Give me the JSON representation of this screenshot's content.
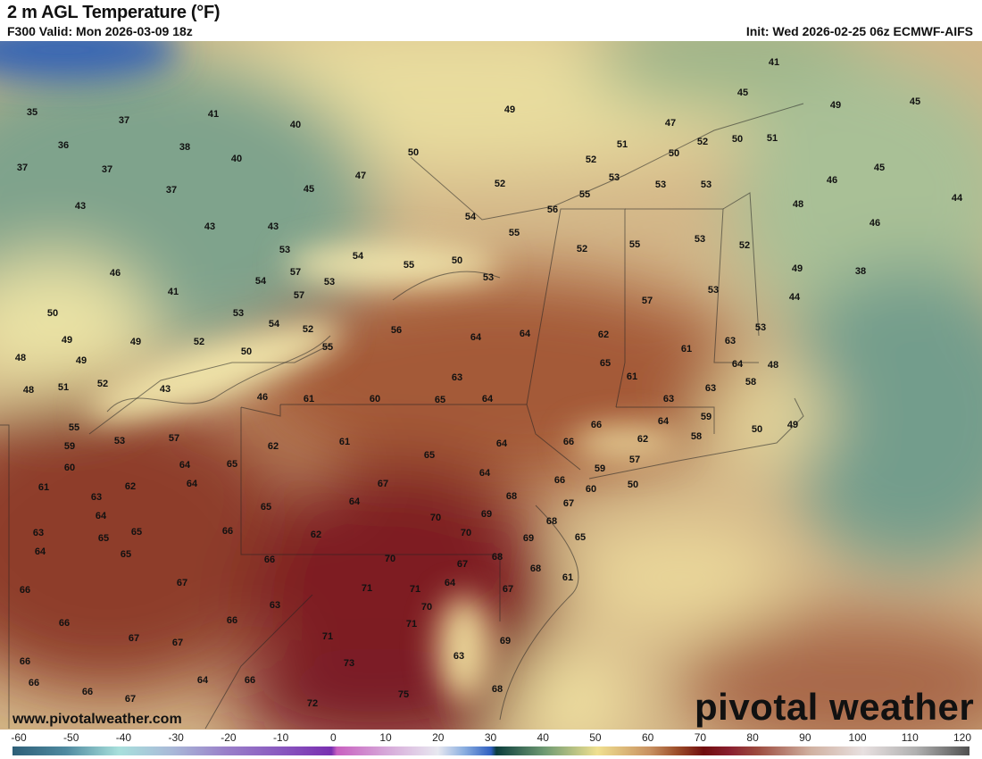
{
  "header": {
    "title": "2 m AGL Temperature (°F)",
    "valid": "F300 Valid: Mon 2026-03-09 18z",
    "init": "Init: Wed 2026-02-25 06z ECMWF-AIFS"
  },
  "branding": {
    "site": "www.pivotalweather.com",
    "logo": "pivotal weather"
  },
  "colorbar": {
    "unit": "°F",
    "ticks": [
      "-60",
      "-50",
      "-40",
      "-30",
      "-20",
      "-10",
      "0",
      "10",
      "20",
      "30",
      "40",
      "50",
      "60",
      "70",
      "80",
      "90",
      "100",
      "110",
      "120"
    ],
    "range": [
      -60,
      120
    ]
  },
  "station_values": [
    35,
    37,
    41,
    40,
    49,
    41,
    45,
    49,
    45,
    36,
    38,
    40,
    50,
    47,
    51,
    52,
    50,
    51,
    50,
    52,
    37,
    37,
    47,
    45,
    37,
    52,
    53,
    53,
    53,
    55,
    46,
    45,
    48,
    44,
    43,
    43,
    43,
    54,
    56,
    55,
    52,
    55,
    53,
    52,
    46,
    53,
    54,
    55,
    50,
    57,
    54,
    53,
    53,
    49,
    38,
    46,
    41,
    57,
    57,
    53,
    44,
    50,
    53,
    54,
    52,
    56,
    64,
    64,
    62,
    53,
    49,
    49,
    52,
    50,
    55,
    61,
    63,
    48,
    49,
    65,
    64,
    48,
    52,
    63,
    61,
    63,
    58,
    48,
    51,
    43,
    63,
    46,
    61,
    60,
    65,
    64,
    59,
    64,
    66,
    50,
    49,
    55,
    53,
    57,
    58,
    62,
    59,
    62,
    61,
    64,
    66,
    60,
    64,
    65,
    65,
    57,
    59,
    64,
    61,
    62,
    64,
    67,
    66,
    50,
    60,
    63,
    68,
    64,
    67,
    64,
    65,
    70,
    69,
    68,
    63,
    65,
    65,
    66,
    62,
    70,
    69,
    65,
    64,
    65,
    66,
    70,
    68,
    67,
    68,
    64,
    61,
    66,
    67,
    71,
    71,
    67,
    66,
    63,
    70,
    66,
    71,
    67,
    67,
    71,
    69,
    66,
    73,
    63,
    66,
    64,
    66,
    75,
    68,
    66,
    67,
    72
  ]
}
